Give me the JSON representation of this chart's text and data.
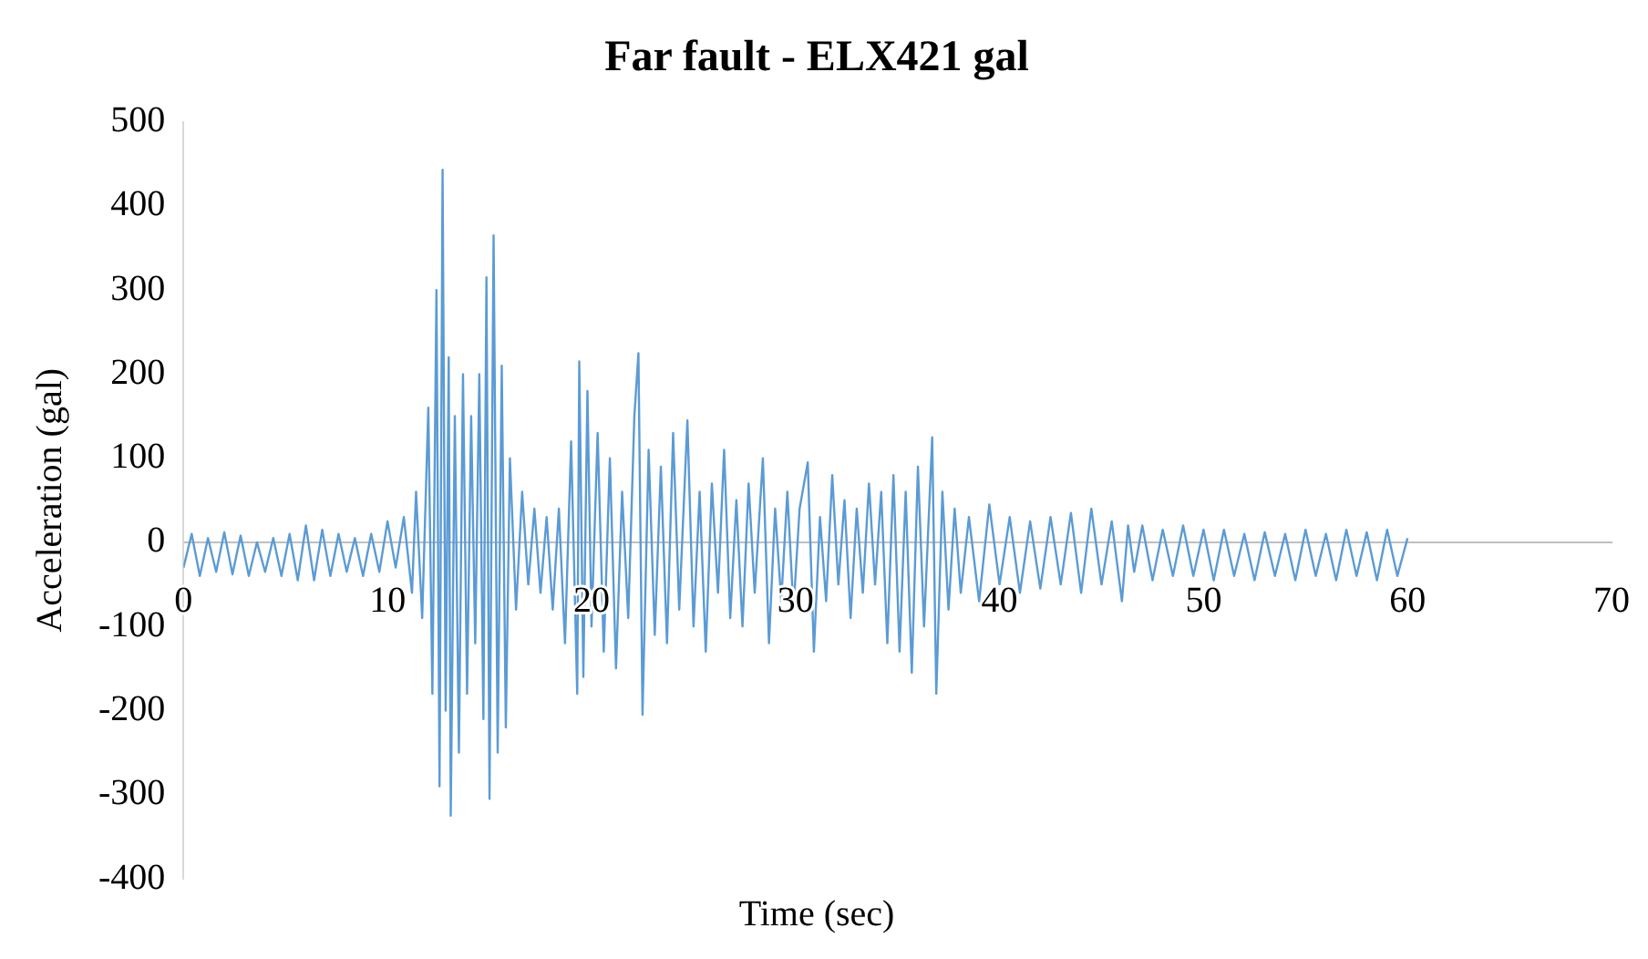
{
  "chart_data": {
    "type": "line",
    "title": "Far fault - ELX421 gal",
    "xlabel": "Time (sec)",
    "ylabel": "Acceleration (gal)",
    "xlim": [
      0,
      70
    ],
    "xticks": [
      0,
      10,
      20,
      30,
      40,
      50,
      60,
      70
    ],
    "ylim": [
      -400,
      500
    ],
    "yticks": [
      -400,
      -300,
      -200,
      -100,
      0,
      100,
      200,
      300,
      400,
      500
    ],
    "grid": false,
    "legend": false,
    "marker": "none",
    "line_style": "solid",
    "x": [
      0,
      0.4,
      0.8,
      1.2,
      1.6,
      2,
      2.4,
      2.8,
      3.2,
      3.6,
      4,
      4.4,
      4.8,
      5.2,
      5.6,
      6,
      6.4,
      6.8,
      7.2,
      7.6,
      8,
      8.4,
      8.8,
      9.2,
      9.6,
      10,
      10.4,
      10.8,
      11.2,
      11.4,
      11.7,
      12,
      12.2,
      12.4,
      12.55,
      12.7,
      12.85,
      13,
      13.1,
      13.3,
      13.5,
      13.7,
      13.9,
      14.1,
      14.3,
      14.5,
      14.7,
      14.85,
      15,
      15.2,
      15.4,
      15.6,
      15.8,
      16,
      16.3,
      16.6,
      16.9,
      17.2,
      17.5,
      17.8,
      18.1,
      18.4,
      18.7,
      19,
      19.3,
      19.4,
      19.6,
      19.8,
      20,
      20.3,
      20.6,
      20.9,
      21.2,
      21.5,
      21.8,
      22.1,
      22.3,
      22.5,
      22.8,
      23.1,
      23.4,
      23.7,
      24,
      24.3,
      24.7,
      25,
      25.3,
      25.6,
      25.9,
      26.2,
      26.5,
      26.8,
      27.1,
      27.4,
      27.7,
      28,
      28.4,
      28.7,
      29,
      29.3,
      29.6,
      29.9,
      30.2,
      30.6,
      30.9,
      31.2,
      31.5,
      31.8,
      32.1,
      32.4,
      32.7,
      33,
      33.3,
      33.6,
      33.9,
      34.2,
      34.5,
      34.8,
      35.1,
      35.4,
      35.7,
      36,
      36.3,
      36.7,
      36.9,
      37.2,
      37.5,
      37.8,
      38.1,
      38.5,
      39,
      39.5,
      40,
      40.5,
      41,
      41.5,
      42,
      42.5,
      43,
      43.5,
      44,
      44.5,
      45,
      45.5,
      46,
      46.3,
      46.6,
      47,
      47.5,
      48,
      48.5,
      49,
      49.5,
      50,
      50.5,
      51,
      51.5,
      52,
      52.5,
      53,
      53.5,
      54,
      54.5,
      55,
      55.5,
      56,
      56.5,
      57,
      57.5,
      58,
      58.5,
      59,
      59.5,
      60
    ],
    "series": [
      {
        "color": "#5b9bd5",
        "values": [
          -30,
          10,
          -40,
          5,
          -35,
          12,
          -38,
          8,
          -40,
          0,
          -35,
          5,
          -40,
          10,
          -45,
          20,
          -45,
          15,
          -40,
          10,
          -35,
          5,
          -40,
          10,
          -35,
          25,
          -30,
          30,
          -60,
          60,
          -90,
          160,
          -180,
          300,
          -290,
          443,
          -200,
          220,
          -325,
          150,
          -250,
          200,
          -180,
          150,
          -120,
          200,
          -210,
          315,
          -305,
          365,
          -250,
          210,
          -220,
          100,
          -80,
          60,
          -50,
          40,
          -60,
          30,
          -80,
          40,
          -120,
          120,
          -180,
          215,
          -160,
          180,
          -100,
          130,
          -130,
          100,
          -150,
          60,
          -90,
          150,
          225,
          -205,
          110,
          -110,
          90,
          -120,
          130,
          -80,
          145,
          -100,
          60,
          -130,
          70,
          -60,
          110,
          -90,
          50,
          -100,
          70,
          -60,
          100,
          -120,
          40,
          -70,
          60,
          -80,
          40,
          95,
          -130,
          30,
          -70,
          80,
          -50,
          50,
          -90,
          40,
          -60,
          70,
          -50,
          60,
          -120,
          80,
          -130,
          60,
          -155,
          90,
          -100,
          125,
          -180,
          60,
          -80,
          40,
          -60,
          30,
          -70,
          45,
          -50,
          30,
          -60,
          25,
          -55,
          30,
          -50,
          35,
          -60,
          40,
          -50,
          25,
          -70,
          20,
          -35,
          20,
          -45,
          15,
          -40,
          20,
          -40,
          15,
          -45,
          15,
          -40,
          10,
          -45,
          12,
          -40,
          10,
          -45,
          15,
          -40,
          10,
          -45,
          15,
          -40,
          12,
          -45,
          15,
          -40,
          5
        ]
      }
    ]
  }
}
